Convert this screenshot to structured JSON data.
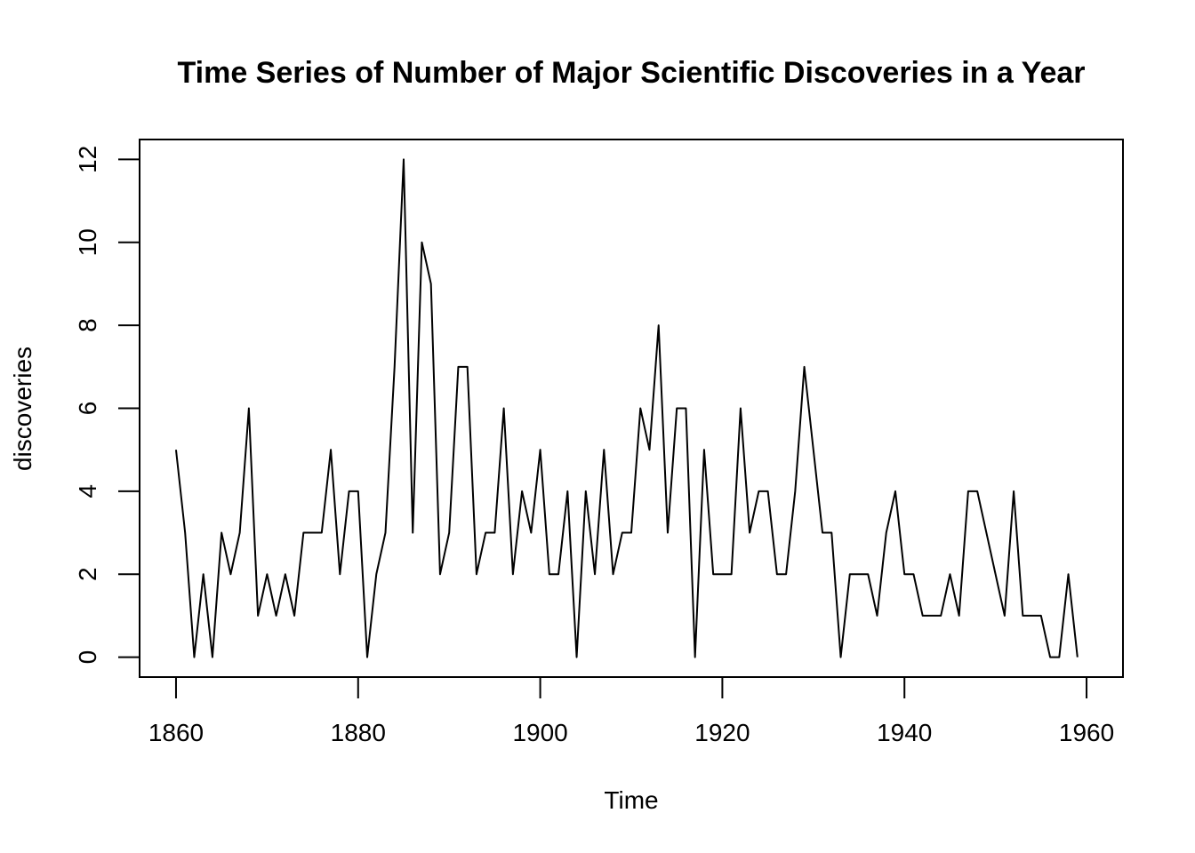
{
  "chart_data": {
    "type": "line",
    "title": "Time Series of Number of Major Scientific Discoveries in a Year",
    "xlabel": "Time",
    "ylabel": "discoveries",
    "xlim": [
      1856,
      1964
    ],
    "ylim": [
      -0.48,
      12.48
    ],
    "x_ticks": [
      1860,
      1880,
      1900,
      1920,
      1940,
      1960
    ],
    "y_ticks": [
      0,
      2,
      4,
      6,
      8,
      10,
      12
    ],
    "grid": false,
    "legend": "none",
    "line_color": "#000000",
    "series": [
      {
        "x": [
          1860,
          1861,
          1862,
          1863,
          1864,
          1865,
          1866,
          1867,
          1868,
          1869,
          1870,
          1871,
          1872,
          1873,
          1874,
          1875,
          1876,
          1877,
          1878,
          1879,
          1880,
          1881,
          1882,
          1883,
          1884,
          1885,
          1886,
          1887,
          1888,
          1889,
          1890,
          1891,
          1892,
          1893,
          1894,
          1895,
          1896,
          1897,
          1898,
          1899,
          1900,
          1901,
          1902,
          1903,
          1904,
          1905,
          1906,
          1907,
          1908,
          1909,
          1910,
          1911,
          1912,
          1913,
          1914,
          1915,
          1916,
          1917,
          1918,
          1919,
          1920,
          1921,
          1922,
          1923,
          1924,
          1925,
          1926,
          1927,
          1928,
          1929,
          1930,
          1931,
          1932,
          1933,
          1934,
          1935,
          1936,
          1937,
          1938,
          1939,
          1940,
          1941,
          1942,
          1943,
          1944,
          1945,
          1946,
          1947,
          1948,
          1949,
          1950,
          1951,
          1952,
          1953,
          1954,
          1955,
          1956,
          1957,
          1958,
          1959
        ],
        "values": [
          5,
          3,
          0,
          2,
          0,
          3,
          2,
          3,
          6,
          1,
          2,
          1,
          2,
          1,
          3,
          3,
          3,
          5,
          2,
          4,
          4,
          0,
          2,
          3,
          7,
          12,
          3,
          10,
          9,
          2,
          3,
          7,
          7,
          2,
          3,
          3,
          6,
          2,
          4,
          3,
          5,
          2,
          2,
          4,
          0,
          4,
          2,
          5,
          2,
          3,
          3,
          6,
          5,
          8,
          3,
          6,
          6,
          0,
          5,
          2,
          2,
          2,
          6,
          3,
          4,
          4,
          2,
          2,
          4,
          7,
          5,
          3,
          3,
          0,
          2,
          2,
          2,
          1,
          3,
          4,
          2,
          2,
          1,
          1,
          1,
          2,
          1,
          4,
          4,
          3,
          2,
          1,
          4,
          1,
          1,
          1,
          0,
          0,
          2,
          0
        ]
      }
    ]
  }
}
